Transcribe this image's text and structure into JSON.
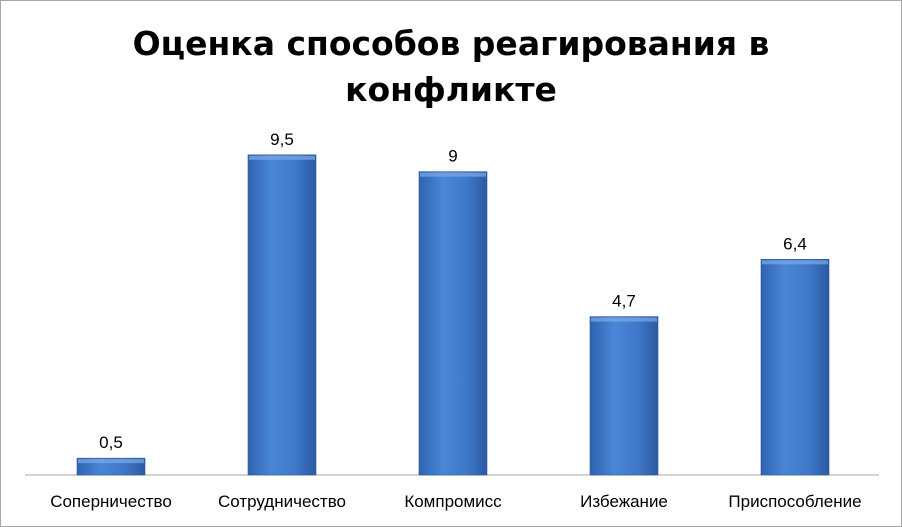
{
  "chart_data": {
    "type": "bar",
    "title": "Оценка способов реагирования в конфликте",
    "categories": [
      "Соперничество",
      "Сотрудничество",
      "Компромисс",
      "Избежание",
      "Приспособление"
    ],
    "values": [
      0.5,
      9.5,
      9,
      4.7,
      6.4
    ],
    "data_labels": [
      "0,5",
      "9,5",
      "9",
      "4,7",
      "6,4"
    ],
    "xlabel": "",
    "ylabel": "",
    "ylim": [
      0,
      10
    ],
    "grid": false,
    "legend": "none",
    "bar_color": "#3f78c8"
  }
}
